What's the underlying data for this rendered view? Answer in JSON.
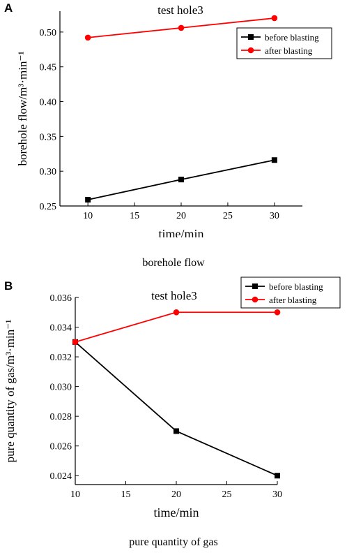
{
  "figure": {
    "panel_a_label": "A",
    "panel_b_label": "B",
    "caption_a": "borehole flow",
    "caption_b": "pure quantity of gas"
  },
  "colors": {
    "before": "#000000",
    "after": "#ff0000",
    "axis": "#000000"
  },
  "chart_data": [
    {
      "type": "line",
      "title": "test hole3",
      "xlabel": "time/min",
      "ylabel": "borehole flow/m³·min⁻¹",
      "x": [
        10,
        20,
        30
      ],
      "xlim": [
        7,
        33
      ],
      "ylim": [
        0.25,
        0.53
      ],
      "xticks": [
        10,
        15,
        20,
        25,
        30
      ],
      "xtick_labels": [
        "10",
        "15",
        "20",
        "25",
        "30"
      ],
      "yticks": [
        0.25,
        0.3,
        0.35,
        0.4,
        0.45,
        0.5
      ],
      "ytick_labels": [
        "0.25",
        "0.30",
        "0.35",
        "0.40",
        "0.45",
        "0.50"
      ],
      "legend_position": "top-right",
      "grid": false,
      "series": [
        {
          "name": "before blasting",
          "marker": "square",
          "values": [
            0.259,
            0.288,
            0.316
          ]
        },
        {
          "name": "after blasting",
          "marker": "circle",
          "values": [
            0.492,
            0.506,
            0.52
          ]
        }
      ]
    },
    {
      "type": "line",
      "title": "test hole3",
      "xlabel": "time/min",
      "ylabel": "pure quantity of gas/m³·min⁻¹",
      "x": [
        10,
        20,
        30
      ],
      "xlim": [
        10,
        30
      ],
      "ylim": [
        0.0234,
        0.036
      ],
      "xticks": [
        10,
        15,
        20,
        25,
        30
      ],
      "xtick_labels": [
        "10",
        "15",
        "20",
        "25",
        "30"
      ],
      "yticks": [
        0.024,
        0.026,
        0.028,
        0.03,
        0.032,
        0.034,
        0.036
      ],
      "ytick_labels": [
        "0.024",
        "0.026",
        "0.028",
        "0.030",
        "0.032",
        "0.034",
        "0.036"
      ],
      "legend_position": "top-right",
      "grid": false,
      "series": [
        {
          "name": "before blasting",
          "marker": "square",
          "values": [
            0.033,
            0.027,
            0.024
          ]
        },
        {
          "name": "after blasting",
          "marker": "circle",
          "values": [
            0.033,
            0.035,
            0.035
          ]
        }
      ]
    }
  ]
}
